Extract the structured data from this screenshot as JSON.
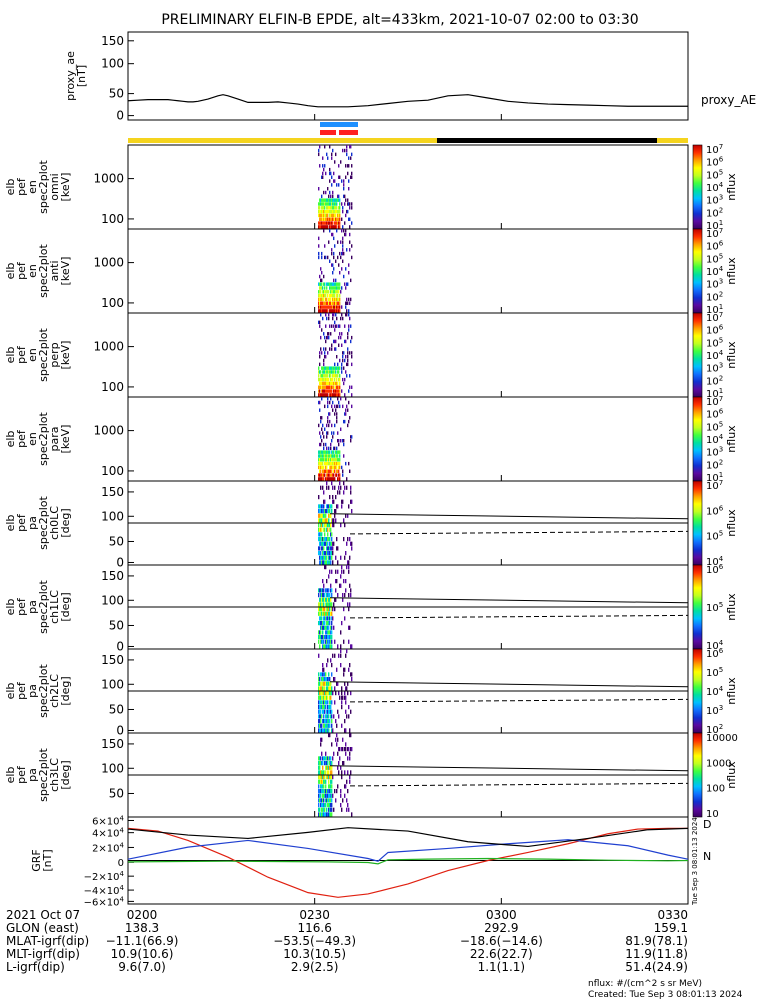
{
  "title": "PRELIMINARY ELFIN-B EPDE, alt=433km, 2021-10-07 02:00 to 03:30",
  "legend_label": "proxy_AE",
  "colors": {
    "quality_bar": "#f5d41e",
    "quality_bar_dark": "#000000",
    "blue_marker": "#1e90ff",
    "red_marker": "#ff2020",
    "grf_black": "#000000",
    "grf_blue": "#2040d0",
    "grf_red": "#e02010",
    "grf_green": "#20b020",
    "colorbar": [
      "#3a0060",
      "#5a0aa0",
      "#1030d0",
      "#1070ff",
      "#00c0ff",
      "#00e0a0",
      "#40ff40",
      "#c0ff20",
      "#ffff00",
      "#ffa000",
      "#ff3000",
      "#c00000"
    ]
  },
  "chart_data": [
    {
      "type": "line",
      "ylabel": [
        "proxy_ae",
        "[nT]"
      ],
      "ylim": [
        0,
        160
      ],
      "yticks": [
        "150",
        "100",
        "50",
        "0"
      ],
      "series": [
        {
          "name": "proxy_AE",
          "x": [
            0,
            10,
            20,
            30,
            40,
            45,
            50,
            55,
            60,
            65,
            70,
            80,
            90,
            95,
            100,
            110,
            120,
            130,
            140,
            150,
            160,
            170,
            180,
            190,
            200,
            210,
            220,
            240,
            260,
            280,
            300,
            320,
            340,
            360,
            380,
            400,
            420,
            440,
            460,
            480,
            500,
            520,
            540,
            560
          ],
          "y": [
            35,
            36,
            37,
            37,
            37,
            36,
            35,
            34,
            33,
            33,
            34,
            38,
            44,
            46,
            44,
            38,
            32,
            32,
            32,
            33,
            31,
            29,
            26,
            24,
            24,
            24,
            24,
            26,
            30,
            34,
            36,
            44,
            46,
            40,
            34,
            31,
            29,
            28,
            27,
            26,
            25,
            25,
            25,
            25
          ]
        }
      ]
    },
    {
      "type": "heatmap",
      "ylabel": [
        "elb",
        "pef",
        "en",
        "spec2plot",
        "omni",
        "[keV]"
      ],
      "yticks": [
        "1000",
        "100"
      ],
      "colorbar_ticks": [
        "10^7",
        "10^6",
        "10^5",
        "10^4",
        "10^3",
        "10^2",
        "10^1"
      ],
      "colorbar_label": "nflux"
    },
    {
      "type": "heatmap",
      "ylabel": [
        "elb",
        "pef",
        "en",
        "spec2plot",
        "anti",
        "[keV]"
      ],
      "yticks": [
        "1000",
        "100"
      ],
      "colorbar_ticks": [
        "10^7",
        "10^6",
        "10^5",
        "10^4",
        "10^3",
        "10^2",
        "10^1"
      ],
      "colorbar_label": "nflux"
    },
    {
      "type": "heatmap",
      "ylabel": [
        "elb",
        "pef",
        "en",
        "spec2plot",
        "perp",
        "[keV]"
      ],
      "yticks": [
        "1000",
        "100"
      ],
      "colorbar_ticks": [
        "10^7",
        "10^6",
        "10^5",
        "10^4",
        "10^3",
        "10^2",
        "10^1"
      ],
      "colorbar_label": "nflux"
    },
    {
      "type": "heatmap",
      "ylabel": [
        "elb",
        "pef",
        "en",
        "spec2plot",
        "para",
        "[keV]"
      ],
      "yticks": [
        "1000",
        "100"
      ],
      "colorbar_ticks": [
        "10^7",
        "10^6",
        "10^5",
        "10^4",
        "10^3",
        "10^2",
        "10^1"
      ],
      "colorbar_label": "nflux"
    },
    {
      "type": "heatmap",
      "ylabel": [
        "elb",
        "pef",
        "pa",
        "spec2plot",
        "ch0LC",
        "[deg]"
      ],
      "yticks": [
        "150",
        "100",
        "50",
        "0"
      ],
      "colorbar_ticks": [
        "10^7",
        "10^6",
        "10^5",
        "10^4"
      ],
      "colorbar_label": "nflux"
    },
    {
      "type": "heatmap",
      "ylabel": [
        "elb",
        "pef",
        "pa",
        "spec2plot",
        "ch1LC",
        "[deg]"
      ],
      "yticks": [
        "150",
        "100",
        "50",
        "0"
      ],
      "colorbar_ticks": [
        "10^6",
        "10^5",
        "10^4"
      ],
      "colorbar_label": "nflux"
    },
    {
      "type": "heatmap",
      "ylabel": [
        "elb",
        "pef",
        "pa",
        "spec2plot",
        "ch2LC",
        "[deg]"
      ],
      "yticks": [
        "150",
        "100",
        "50",
        "0"
      ],
      "colorbar_ticks": [
        "10^6",
        "10^5",
        "10^4",
        "10^3",
        "10^2"
      ],
      "colorbar_label": "nflux"
    },
    {
      "type": "heatmap",
      "ylabel": [
        "elb",
        "pef",
        "pa",
        "spec2plot",
        "ch3LC",
        "[deg]"
      ],
      "yticks": [
        "150",
        "100",
        "50"
      ],
      "colorbar_ticks": [
        "10000",
        "1000",
        "100",
        "10"
      ],
      "colorbar_label": "nflux"
    },
    {
      "type": "line",
      "ylabel": [
        "GRF",
        "[nT]"
      ],
      "ylim": [
        -65000,
        65000
      ],
      "yticks": [
        "6×10^4",
        "4×10^4",
        "2×10^4",
        "0",
        "−2×10^4",
        "−4×10^4",
        "−6×10^4"
      ],
      "series": [
        {
          "name": "D",
          "color": "#e02010",
          "x": [
            0,
            30,
            60,
            100,
            140,
            180,
            210,
            240,
            280,
            320,
            360,
            400,
            440,
            480,
            510,
            540,
            560
          ],
          "y": [
            48000,
            44000,
            30000,
            5000,
            -25000,
            -48000,
            -55000,
            -50000,
            -35000,
            -15000,
            0,
            12000,
            25000,
            40000,
            47000,
            48000,
            48000
          ]
        },
        {
          "name": "N",
          "color": "#20b020",
          "x": [
            0,
            100,
            200,
            240,
            250,
            260,
            300,
            360,
            420,
            480,
            540,
            560
          ],
          "y": [
            -2000,
            -1000,
            -2000,
            -3000,
            -5000,
            1000,
            2000,
            3000,
            2000,
            500,
            -500,
            0
          ]
        },
        {
          "name": "",
          "color": "#2040d0",
          "x": [
            0,
            60,
            120,
            180,
            240,
            250,
            260,
            320,
            380,
            440,
            500,
            540,
            560
          ],
          "y": [
            2000,
            20000,
            30000,
            18000,
            3000,
            -1000,
            12000,
            18000,
            25000,
            31000,
            22000,
            8000,
            2000
          ]
        },
        {
          "name": "",
          "color": "#000000",
          "x": [
            0,
            60,
            120,
            180,
            220,
            280,
            340,
            400,
            460,
            520,
            560
          ],
          "y": [
            47000,
            38000,
            33000,
            42000,
            49000,
            44000,
            28000,
            21000,
            33000,
            46000,
            48000
          ]
        }
      ]
    }
  ],
  "time_axis": {
    "ticks": [
      "0200",
      "0230",
      "0300",
      "0330"
    ],
    "rows": [
      {
        "label": "2021 Oct 07",
        "values": [
          "0200",
          "0230",
          "0300",
          "0330"
        ]
      },
      {
        "label": "GLON (east)",
        "values": [
          "138.3",
          "116.6",
          "292.9",
          "159.1"
        ]
      },
      {
        "label": "MLAT-igrf(dip)",
        "values": [
          "−11.1(66.9)",
          "−53.5(−49.3)",
          "−18.6(−14.6)",
          "81.9(78.1)"
        ]
      },
      {
        "label": "MLT-igrf(dip)",
        "values": [
          "10.9(10.6)",
          "10.3(10.5)",
          "22.6(22.7)",
          "11.9(11.8)"
        ]
      },
      {
        "label": "L-igrf(dip)",
        "values": [
          "9.6(7.0)",
          "2.9(2.5)",
          "1.1(1.1)",
          "51.4(24.9)"
        ]
      }
    ]
  },
  "footer": {
    "units": "nflux: #/(cm^2 s sr MeV)",
    "created": "Created: Tue Sep  3 08:01:13 2024",
    "side_stamp": "Tue Sep  3 08:01:13 2024"
  }
}
